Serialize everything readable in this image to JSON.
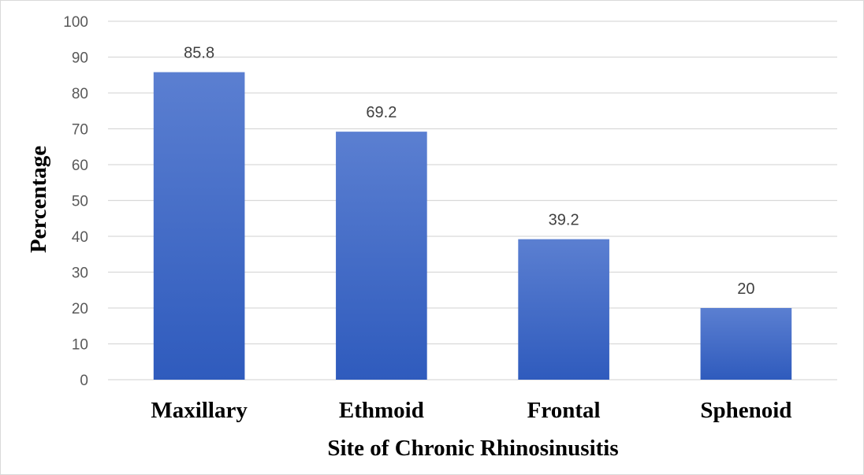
{
  "chart_data": {
    "type": "bar",
    "categories": [
      "Maxillary",
      "Ethmoid",
      "Frontal",
      "Sphenoid"
    ],
    "series": [
      {
        "values": [
          85.8,
          69.2,
          39.2,
          20
        ]
      }
    ],
    "data_labels": [
      "85.8",
      "69.2",
      "39.2",
      "20"
    ],
    "xlabel": "Site of Chronic Rhinosinusitis",
    "ylabel": "Percentage",
    "ylim": [
      0,
      100
    ],
    "yticks": [
      "0",
      "10",
      "20",
      "30",
      "40",
      "50",
      "60",
      "70",
      "80",
      "90",
      "100"
    ],
    "grid": true,
    "legend": "none",
    "colors": {
      "bar_top": "#5b7fd1",
      "bar_bottom": "#2f5bbd",
      "grid": "#d9d9d9"
    }
  }
}
